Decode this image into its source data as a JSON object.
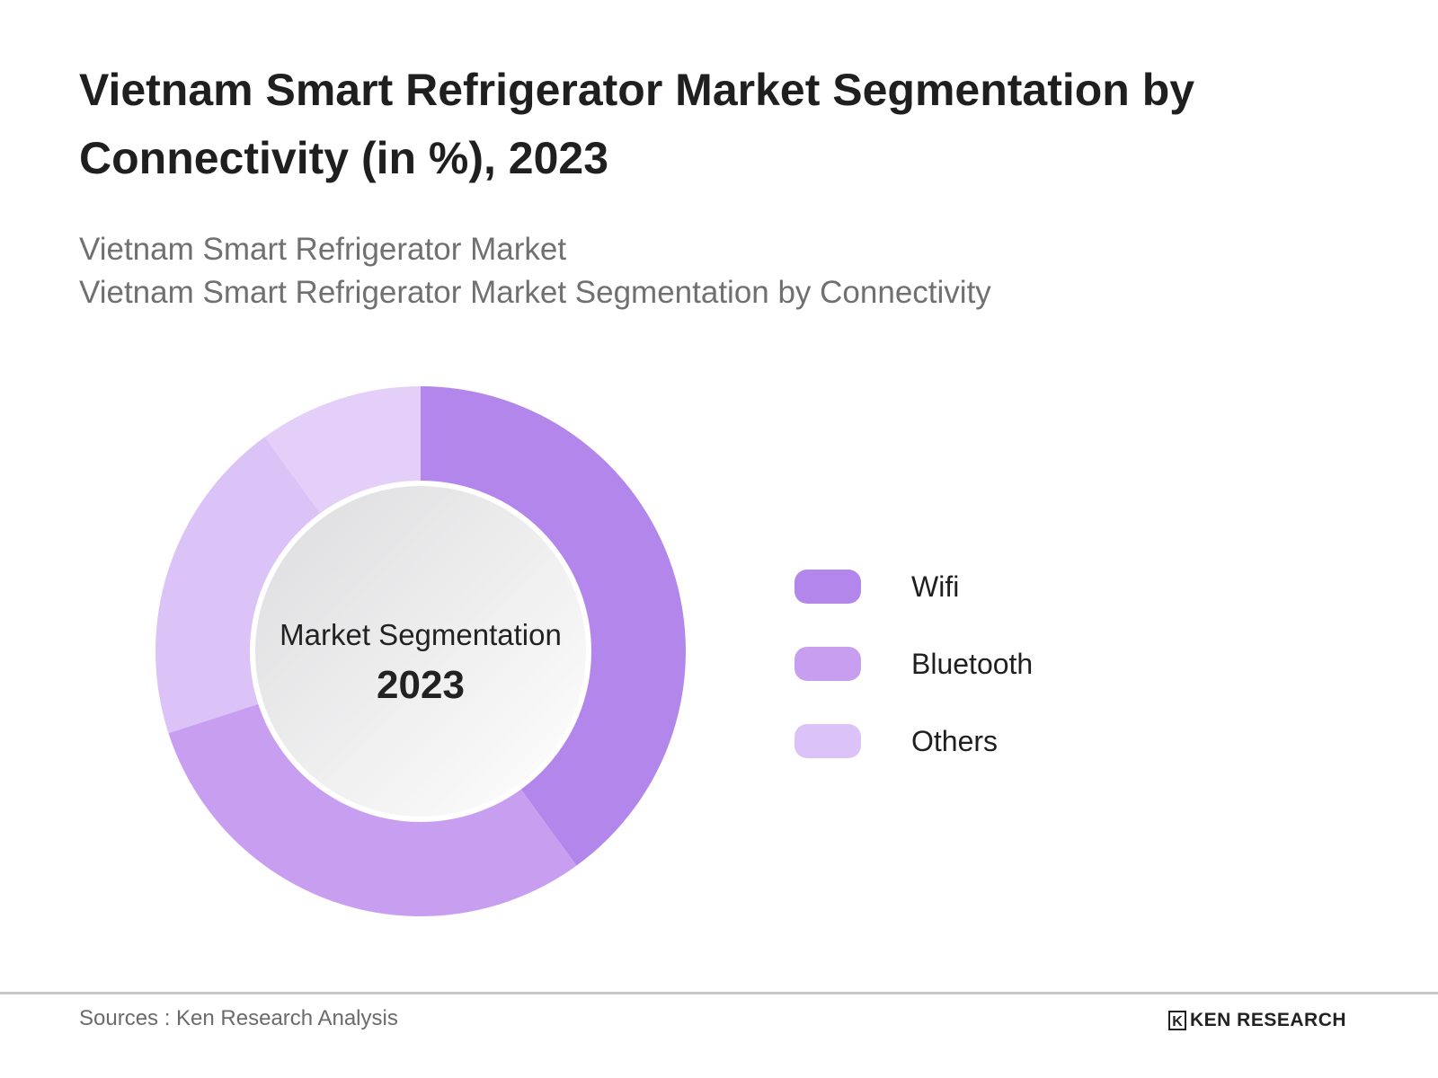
{
  "header": {
    "title": "Vietnam Smart Refrigerator Market Segmentation by Connectivity (in %), 2023",
    "subtitle_1": "Vietnam Smart Refrigerator Market",
    "subtitle_2": "Vietnam Smart Refrigerator Market Segmentation by Connectivity"
  },
  "chart_data": {
    "type": "pie",
    "variant": "donut",
    "center_label": "Market Segmentation",
    "center_year": "2023",
    "legend_position": "right",
    "categories": [
      "Wifi",
      "Bluetooth",
      "Others",
      ""
    ],
    "values": [
      40,
      30,
      20,
      10
    ],
    "colors": [
      "#b386eb",
      "#c89ff0",
      "#dcc3f7",
      "#e4cff8"
    ]
  },
  "legend": [
    {
      "label": "Wifi",
      "color": "#b386eb"
    },
    {
      "label": "Bluetooth",
      "color": "#c89ff0"
    },
    {
      "label": "Others",
      "color": "#dcc3f7"
    }
  ],
  "footer": {
    "source": "Sources : Ken Research Analysis",
    "logo_text": "KEN RESEARCH",
    "logo_mark": "K"
  }
}
